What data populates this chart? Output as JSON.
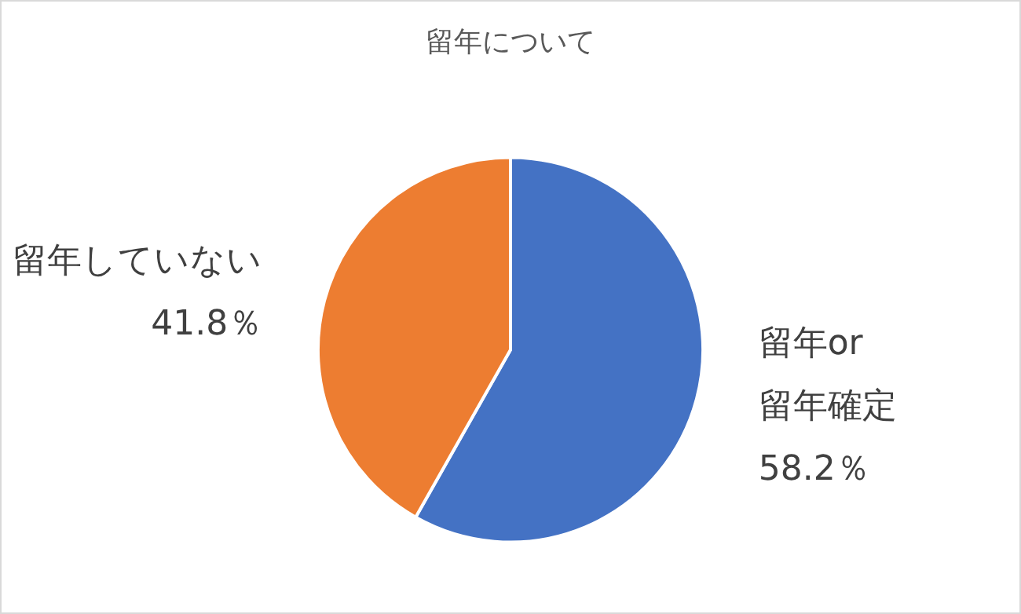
{
  "chart_data": {
    "type": "pie",
    "title": "留年について",
    "categories": [
      "留年or\n留年確定",
      "留年していない"
    ],
    "values": [
      58.2,
      41.8
    ],
    "colors": [
      "#4472c4",
      "#ed7d31"
    ],
    "value_labels": [
      "58.2％",
      "41.8％"
    ],
    "legend": false
  }
}
